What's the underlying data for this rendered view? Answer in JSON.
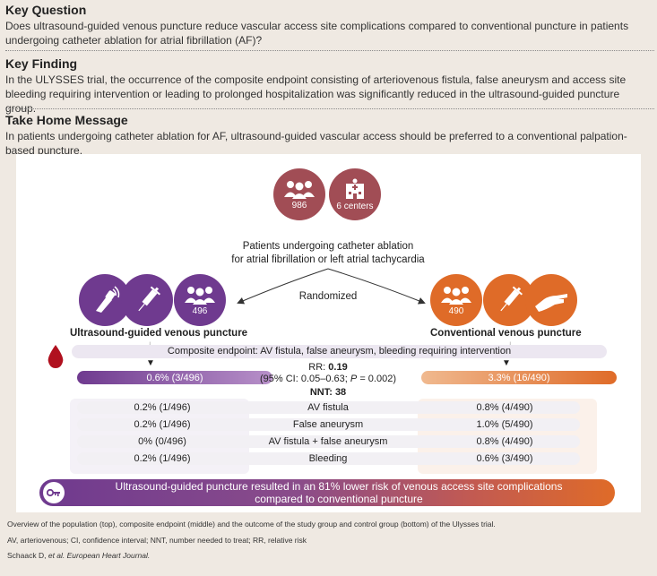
{
  "key_question": {
    "heading": "Key Question",
    "text": "Does ultrasound-guided venous puncture reduce vascular access site complications compared to conventional puncture in patients undergoing catheter ablation for atrial fibrillation (AF)?"
  },
  "key_finding": {
    "heading": "Key Finding",
    "text": "In the ULYSSES trial, the occurrence of the composite endpoint consisting of arteriovenous fistula, false aneurysm and access site bleeding requiring intervention or leading to prolonged hospitalization was significantly reduced in the ultrasound-guided puncture group."
  },
  "take_home": {
    "heading": "Take Home Message",
    "text": "In patients undergoing catheter ablation for AF, ultrasound-guided vascular access should be preferred to a conventional palpation-based puncture."
  },
  "population": {
    "patients_count": "986",
    "centers": "6 centers",
    "description_line1": "Patients undergoing catheter ablation",
    "description_line2": "for atrial fibrillation or left atrial tachycardia",
    "randomized": "Randomized"
  },
  "groups": {
    "us": {
      "label": "Ultrasound-guided venous puncture",
      "n": "496",
      "result": "0.6% (3/496)"
    },
    "conv": {
      "label": "Conventional venous puncture",
      "n": "490",
      "result": "3.3% (16/490)"
    }
  },
  "endpoint": {
    "text": "Composite endpoint: AV fistula, false aneurysm, bleeding requiring intervention",
    "rr_label": "RR:",
    "rr_value": "0.19",
    "ci_prefix": "(95% CI: 0.05–0.63;",
    "p_label": "P",
    "p_value": "= 0.002)",
    "nnt_label": "NNT:",
    "nnt_value": "38"
  },
  "outcomes": [
    {
      "us": "0.2% (1/496)",
      "name": "AV fistula",
      "conv": "0.8% (4/490)"
    },
    {
      "us": "0.2% (1/496)",
      "name": "False aneurysm",
      "conv": "1.0% (5/490)"
    },
    {
      "us": "0% (0/496)",
      "name": "AV fistula + false aneurysm",
      "conv": "0.8% (4/490)"
    },
    {
      "us": "0.2% (1/496)",
      "name": "Bleeding",
      "conv": "0.6% (3/490)"
    }
  ],
  "conclusion": {
    "line1": "Ultrasound-guided puncture resulted in an 81% lower risk of venous access site complications",
    "line2": "compared to conventional puncture"
  },
  "footer": {
    "overview": "Overview of the population (top), composite endpoint (middle) and the outcome of the study group and control group (bottom) of the Ulysses trial.",
    "abbreviations": "AV, arteriovenous; CI, confidence interval; NNT, number needed to treat; RR, relative risk",
    "citation_authors": "Schaack D,",
    "citation_etal": "et al. European Heart Journal."
  },
  "colors": {
    "purple": "#6f3a8f",
    "orange": "#df6b28",
    "maroon": "#a14d55",
    "blood": "#b0101e"
  },
  "icons": [
    "people-icon",
    "hospital-icon",
    "ultrasound-probe-icon",
    "syringe-icon",
    "hand-palpation-icon",
    "blood-drop-icon",
    "key-icon",
    "arrow-down-icon"
  ]
}
